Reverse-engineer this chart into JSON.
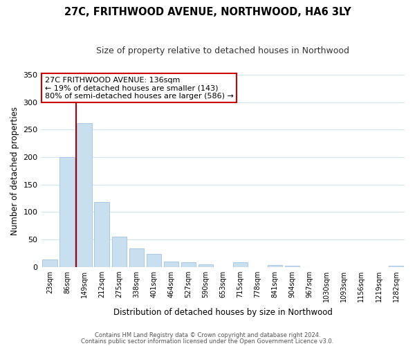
{
  "title": "27C, FRITHWOOD AVENUE, NORTHWOOD, HA6 3LY",
  "subtitle": "Size of property relative to detached houses in Northwood",
  "xlabel": "Distribution of detached houses by size in Northwood",
  "ylabel": "Number of detached properties",
  "categories": [
    "23sqm",
    "86sqm",
    "149sqm",
    "212sqm",
    "275sqm",
    "338sqm",
    "401sqm",
    "464sqm",
    "527sqm",
    "590sqm",
    "653sqm",
    "715sqm",
    "778sqm",
    "841sqm",
    "904sqm",
    "967sqm",
    "1030sqm",
    "1093sqm",
    "1156sqm",
    "1219sqm",
    "1282sqm"
  ],
  "values": [
    13,
    200,
    262,
    118,
    55,
    34,
    24,
    10,
    8,
    5,
    0,
    8,
    0,
    3,
    2,
    0,
    0,
    0,
    0,
    0,
    2
  ],
  "bar_color": "#c8dff0",
  "bar_edge_color": "#a8c8e8",
  "vline_color": "#aa0000",
  "annotation_line1": "27C FRITHWOOD AVENUE: 136sqm",
  "annotation_line2": "← 19% of detached houses are smaller (143)",
  "annotation_line3": "80% of semi-detached houses are larger (586) →",
  "annotation_box_color": "#ffffff",
  "annotation_box_edge": "#cc0000",
  "ylim": [
    0,
    350
  ],
  "yticks": [
    0,
    50,
    100,
    150,
    200,
    250,
    300,
    350
  ],
  "footnote1": "Contains HM Land Registry data © Crown copyright and database right 2024.",
  "footnote2": "Contains public sector information licensed under the Open Government Licence v3.0.",
  "background_color": "#ffffff",
  "grid_color": "#d0e4f0"
}
